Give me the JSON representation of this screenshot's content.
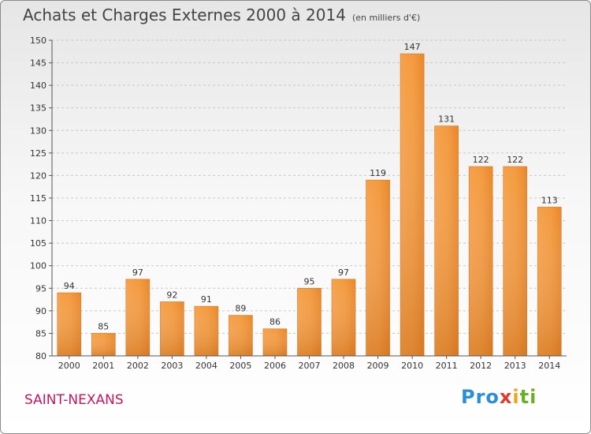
{
  "header": {
    "title": "Achats et Charges Externes 2000 à 2014",
    "units": "(en milliers d'€)"
  },
  "footer": {
    "town": "SAINT-NEXANS",
    "logo": {
      "part1": "Pro",
      "part2": "x",
      "part3": "i",
      "part4": "ti"
    }
  },
  "chart_data": {
    "type": "bar",
    "title": "Achats et Charges Externes 2000 à 2014",
    "subtitle": "(en milliers d'€)",
    "xlabel": "",
    "ylabel": "",
    "categories": [
      "2000",
      "2001",
      "2002",
      "2003",
      "2004",
      "2005",
      "2006",
      "2007",
      "2008",
      "2009",
      "2010",
      "2011",
      "2012",
      "2013",
      "2014"
    ],
    "values": [
      94,
      85,
      97,
      92,
      91,
      89,
      86,
      95,
      97,
      119,
      147,
      131,
      122,
      122,
      113
    ],
    "ylim": [
      80,
      150
    ],
    "yticks": [
      80,
      85,
      90,
      95,
      100,
      105,
      110,
      115,
      120,
      125,
      130,
      135,
      140,
      145,
      150
    ],
    "grid": "y-dashed",
    "legend": "none",
    "bar_color": "#f0892f"
  }
}
